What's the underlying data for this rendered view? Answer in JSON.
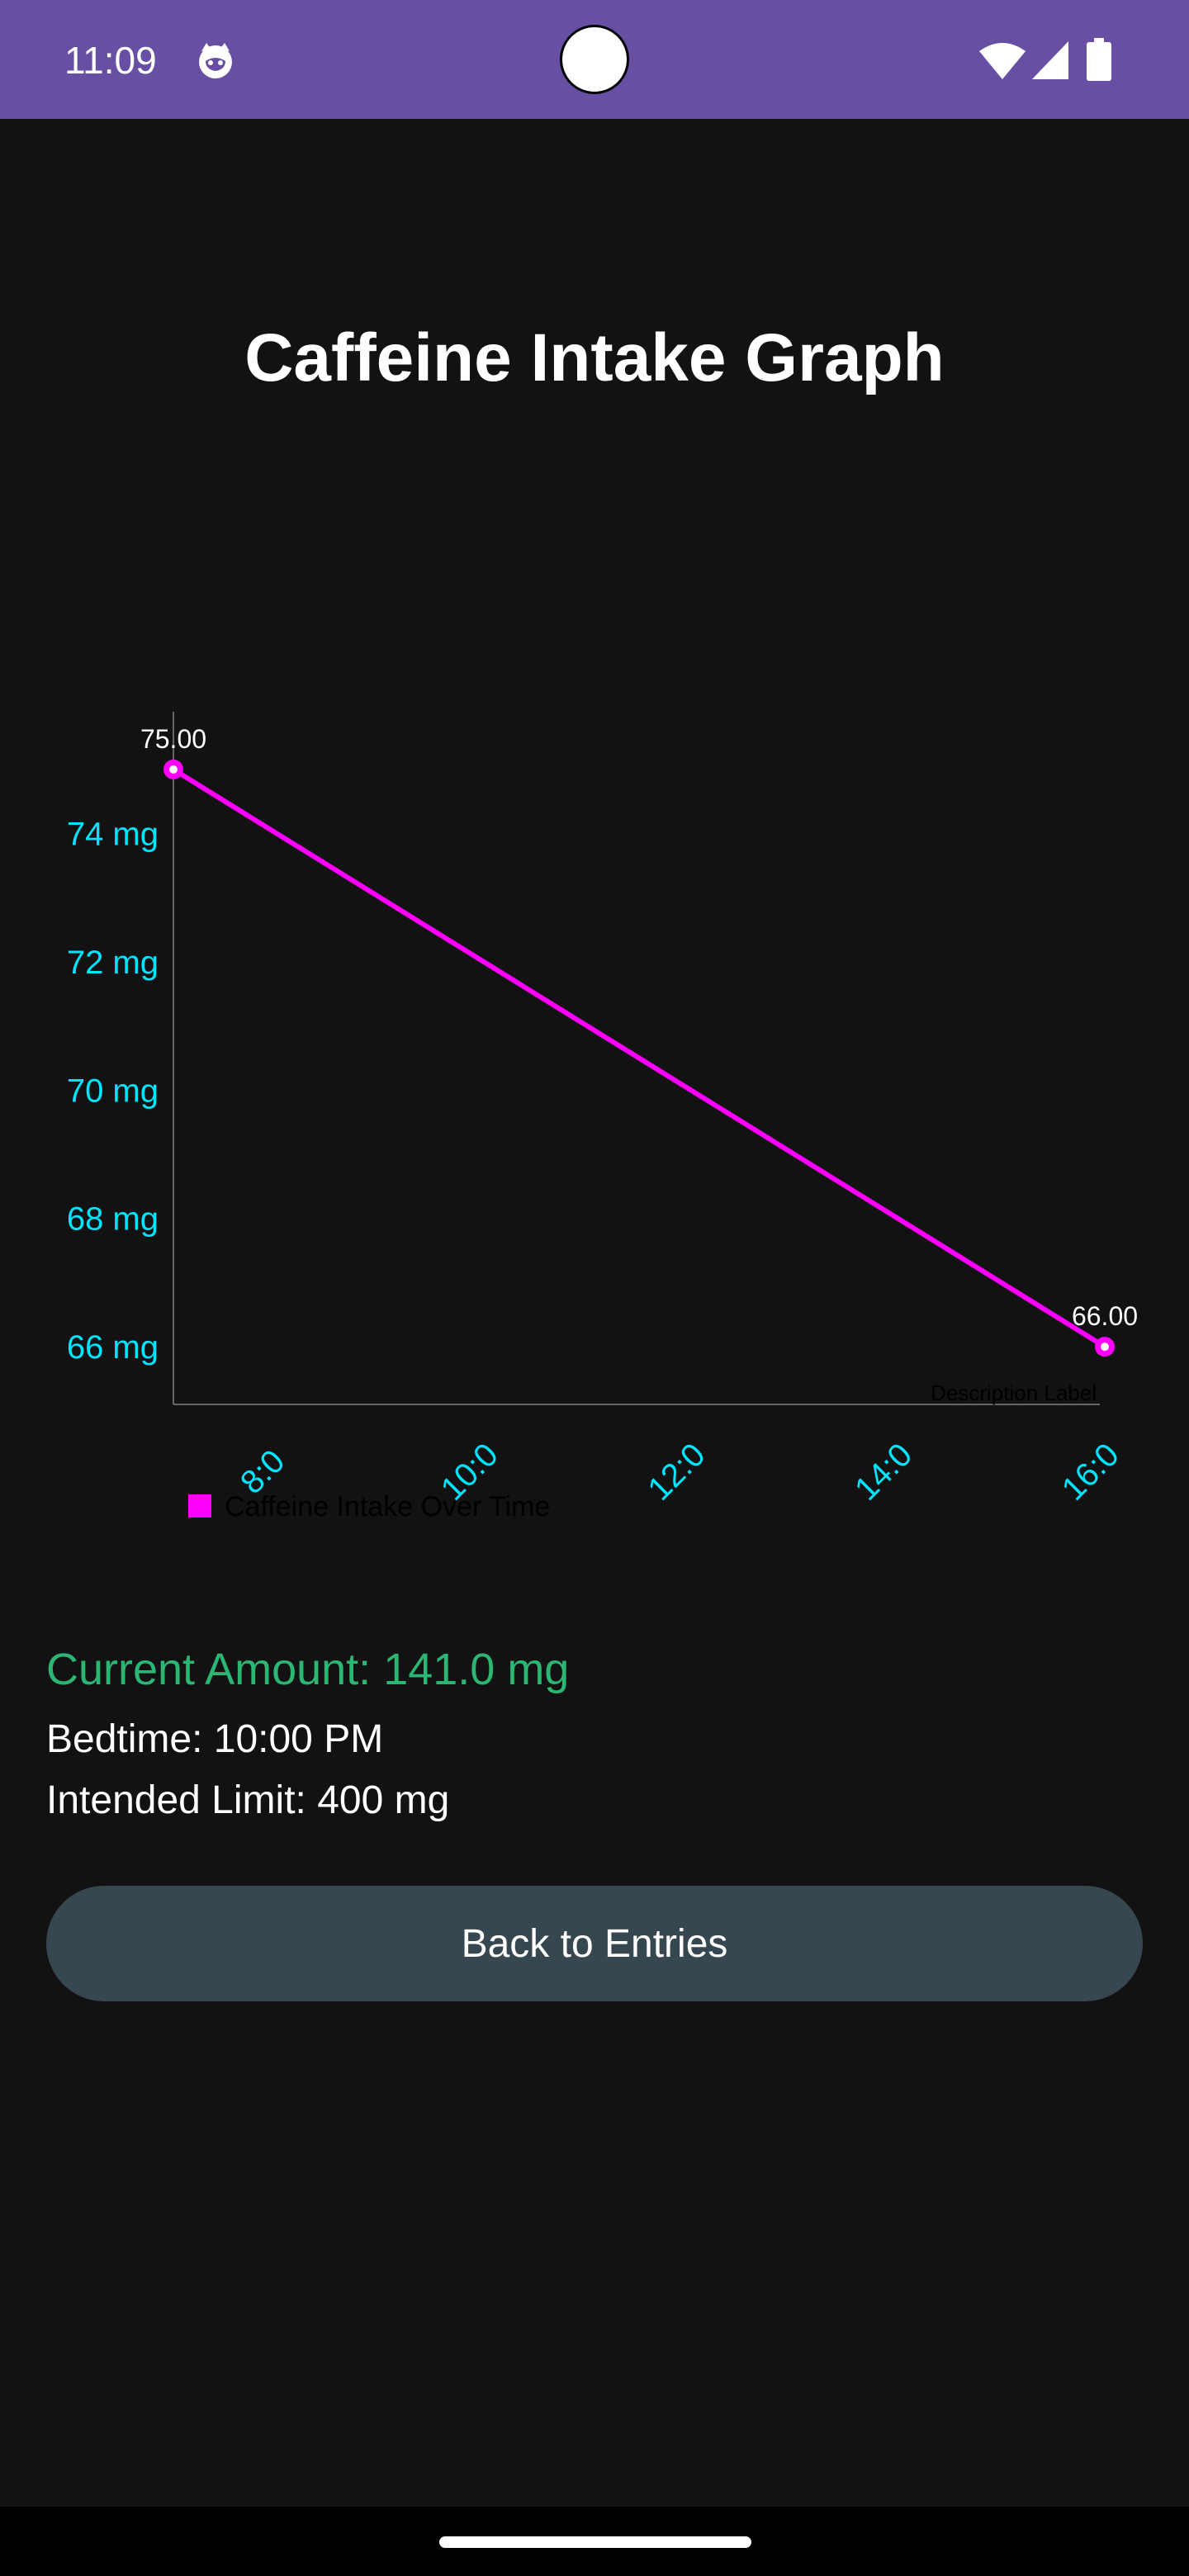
{
  "status_bar": {
    "time": "11:09",
    "icons": [
      "cat-icon",
      "wifi-icon",
      "signal-icon",
      "battery-icon"
    ]
  },
  "page": {
    "title": "Caffeine Intake Graph"
  },
  "chart_data": {
    "type": "line",
    "x": [
      7,
      16
    ],
    "values": [
      75.0,
      66.0
    ],
    "point_labels": [
      "75.00",
      "66.00"
    ],
    "xticks": [
      "8:0",
      "10:0",
      "12:0",
      "14:0",
      "16:0"
    ],
    "xtick_values": [
      8,
      10,
      12,
      14,
      16
    ],
    "yticks": [
      "66 mg",
      "68 mg",
      "70 mg",
      "72 mg",
      "74 mg"
    ],
    "ytick_values": [
      66,
      68,
      70,
      72,
      74
    ],
    "xlim": [
      7,
      16
    ],
    "ylim": [
      65.1,
      75.9
    ],
    "description": "Description Label",
    "legend": "Caffeine Intake Over Time",
    "legend_placement": "bottom-left",
    "grid": false,
    "colors": {
      "line": "#ff00ff",
      "ticks": "#00e5ff",
      "point_labels": "#ffffff",
      "axis": "#666666",
      "description": "#000000"
    }
  },
  "info": {
    "current": "Current Amount: 141.0 mg",
    "bedtime": "Bedtime: 10:00 PM",
    "limit": "Intended Limit: 400 mg",
    "current_color": "#2bb673"
  },
  "actions": {
    "back_label": "Back to Entries"
  }
}
